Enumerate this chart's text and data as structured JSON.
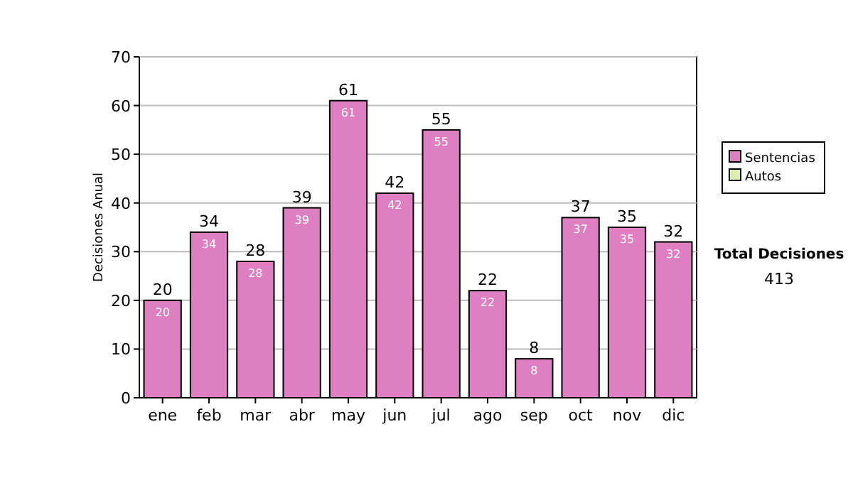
{
  "chart_data": {
    "type": "bar",
    "ylabel": "Decisiones Anual",
    "categories": [
      "ene",
      "feb",
      "mar",
      "abr",
      "may",
      "jun",
      "jul",
      "ago",
      "sep",
      "oct",
      "nov",
      "dic"
    ],
    "series": [
      {
        "name": "Sentencias",
        "color": "#dd7fc0",
        "values": [
          20,
          34,
          28,
          39,
          61,
          42,
          55,
          22,
          8,
          37,
          35,
          32
        ],
        "value_labels": [
          "20",
          "34",
          "28",
          "39",
          "61",
          "42",
          "55",
          "22",
          "8",
          "37",
          "35",
          "32"
        ]
      },
      {
        "name": "Autos",
        "color": "#ddeeaa",
        "values": [
          null,
          null,
          null,
          null,
          null,
          null,
          null,
          null,
          null,
          null,
          null,
          null
        ]
      }
    ],
    "totals": [
      "20",
      "34",
      "28",
      "39",
      "61",
      "42",
      "55",
      "22",
      "8",
      "37",
      "35",
      "32"
    ],
    "ylim": [
      0,
      70
    ],
    "yticks": [
      0,
      10,
      20,
      30,
      40,
      50,
      60,
      70
    ],
    "grid": "y",
    "legend": "right",
    "annotations": [
      "Total Decisiones",
      "413"
    ]
  }
}
